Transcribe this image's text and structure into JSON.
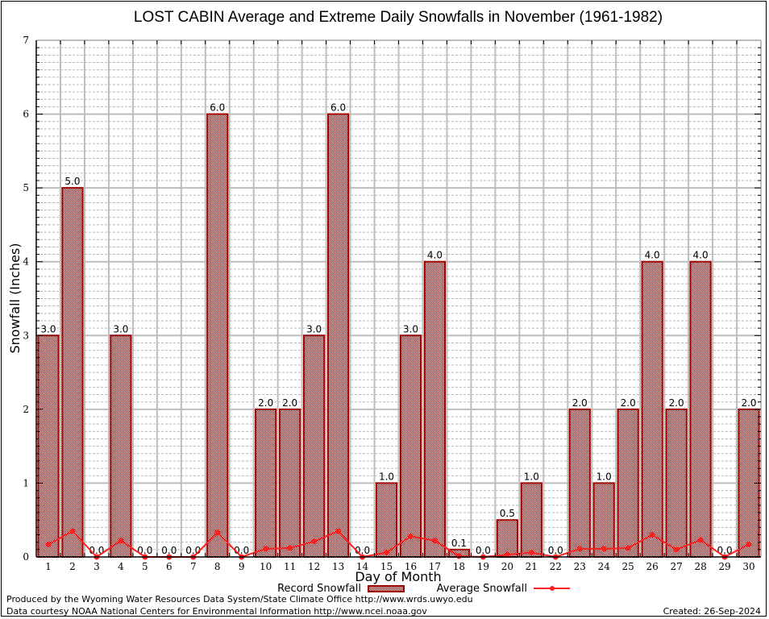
{
  "chart_data": {
    "type": "bar",
    "title": "LOST CABIN Average and Extreme Daily Snowfalls in November (1961-1982)",
    "xlabel": "Day of Month",
    "ylabel": "Snowfall (Inches)",
    "ylim": [
      0,
      7
    ],
    "yticks": [
      "0",
      "1",
      "2",
      "3",
      "4",
      "5",
      "6",
      "7"
    ],
    "grid": true,
    "categories": [
      "1",
      "2",
      "3",
      "4",
      "5",
      "6",
      "7",
      "8",
      "9",
      "10",
      "11",
      "12",
      "13",
      "14",
      "15",
      "16",
      "17",
      "18",
      "19",
      "20",
      "21",
      "22",
      "23",
      "24",
      "25",
      "26",
      "27",
      "28",
      "29",
      "30"
    ],
    "series": [
      {
        "name": "Record Snowfall",
        "type": "bar",
        "color": "#990000",
        "values": [
          3.0,
          5.0,
          0.0,
          3.0,
          0.0,
          0.0,
          0.0,
          6.0,
          0.0,
          2.0,
          2.0,
          3.0,
          6.0,
          0.0,
          1.0,
          3.0,
          4.0,
          0.1,
          0.0,
          0.5,
          1.0,
          0.0,
          2.0,
          1.0,
          2.0,
          4.0,
          2.0,
          4.0,
          0.0,
          2.0
        ],
        "labels": [
          "3.0",
          "5.0",
          "0.0",
          "3.0",
          "0.0",
          "0.0",
          "0.0",
          "6.0",
          "0.0",
          "2.0",
          "2.0",
          "3.0",
          "6.0",
          "0.0",
          "1.0",
          "3.0",
          "4.0",
          "0.1",
          "0.0",
          "0.5",
          "1.0",
          "0.0",
          "2.0",
          "1.0",
          "2.0",
          "4.0",
          "2.0",
          "4.0",
          "0.0",
          "2.0"
        ]
      },
      {
        "name": "Average Snowfall",
        "type": "line",
        "color": "#ff2020",
        "values": [
          0.17,
          0.35,
          0.0,
          0.22,
          0.0,
          0.0,
          0.0,
          0.33,
          0.0,
          0.11,
          0.12,
          0.21,
          0.35,
          0.0,
          0.06,
          0.28,
          0.22,
          0.01,
          0.0,
          0.03,
          0.06,
          0.0,
          0.11,
          0.11,
          0.12,
          0.3,
          0.1,
          0.23,
          0.0,
          0.17
        ]
      }
    ],
    "legend": {
      "placement": "bottom",
      "items": [
        "Record Snowfall",
        "Average Snowfall"
      ]
    }
  },
  "footer": {
    "line1": "Produced by the Wyoming Water Resources Data System/State Climate Office http://www.wrds.uwyo.edu",
    "line2": "Data courtesy NOAA National Centers for Environmental Information http://www.ncei.noaa.gov",
    "created": "Created:  26-Sep-2024"
  }
}
